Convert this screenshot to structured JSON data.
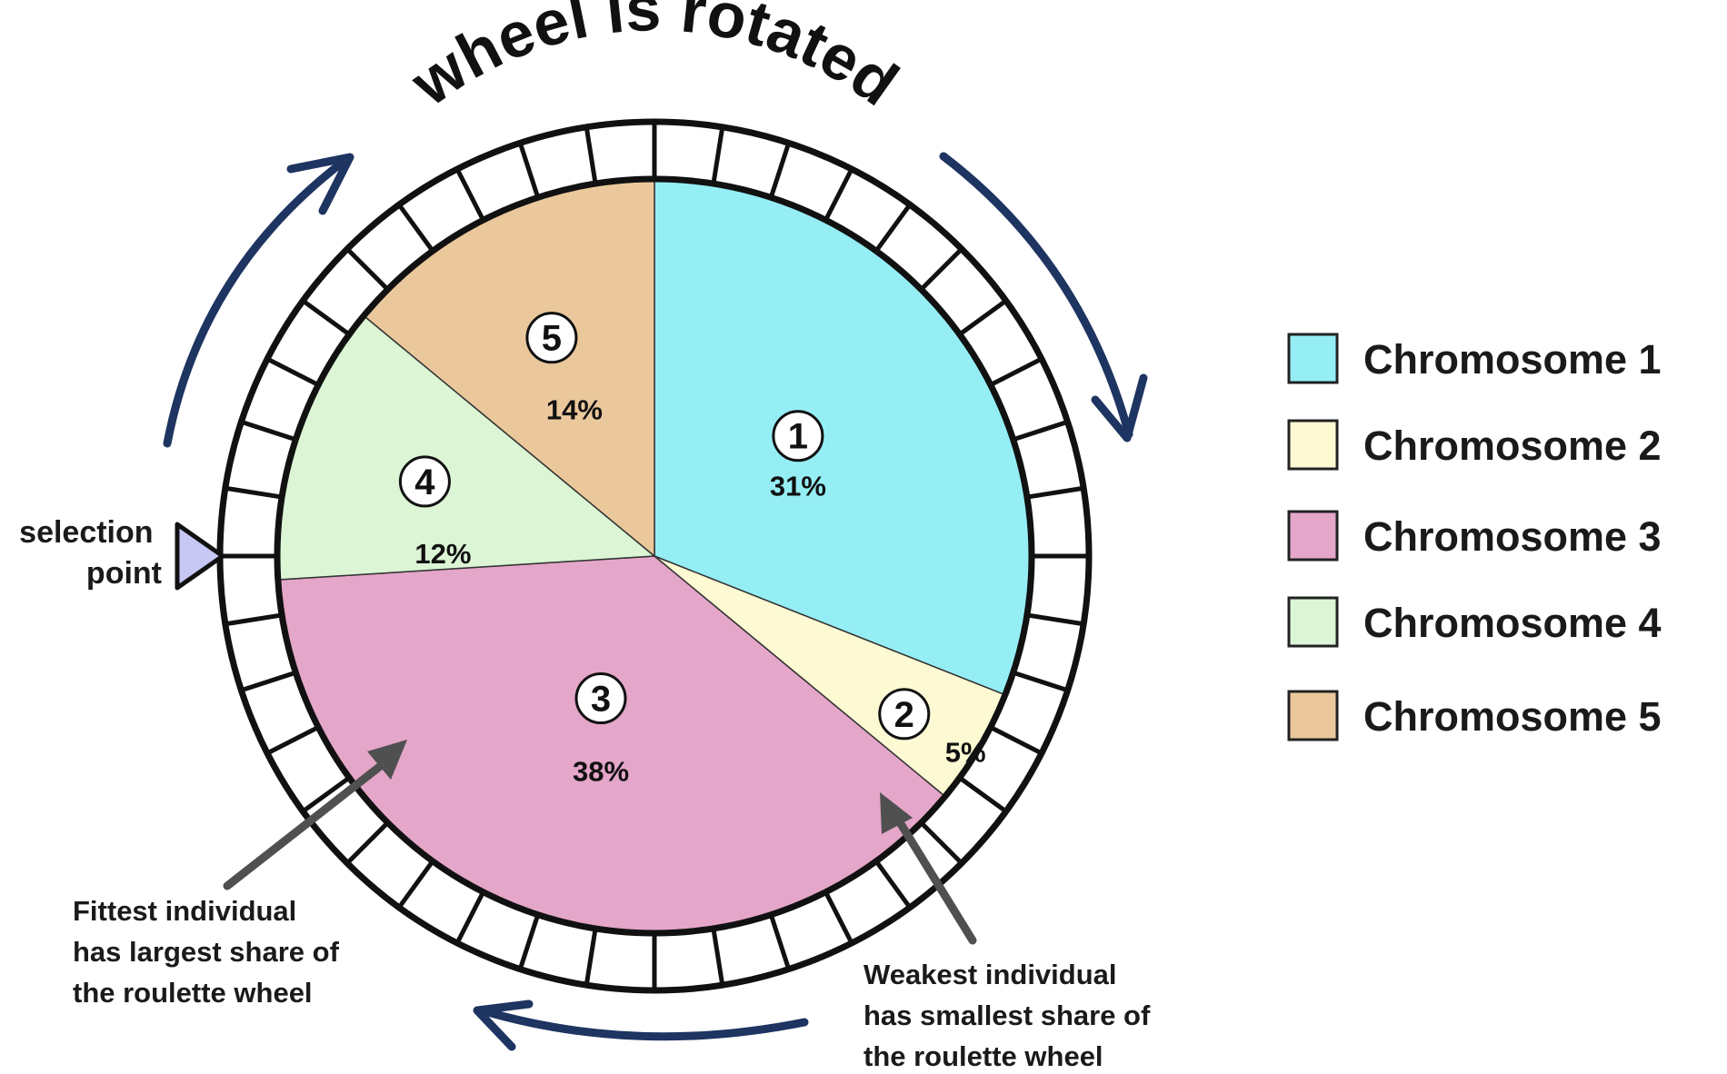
{
  "title": "wheel is rotated",
  "selection_label": [
    "selection",
    "point"
  ],
  "chart_data": {
    "type": "pie",
    "slices": [
      {
        "id": "1",
        "label": "Chromosome 1",
        "value": 31,
        "display": "31%",
        "color": "#96eef5"
      },
      {
        "id": "2",
        "label": "Chromosome 2",
        "value": 5,
        "display": "5%",
        "color": "#fdf9d3"
      },
      {
        "id": "3",
        "label": "Chromosome 3",
        "value": 38,
        "display": "38%",
        "color": "#e4a6c9"
      },
      {
        "id": "4",
        "label": "Chromosome 4",
        "value": 12,
        "display": "12%",
        "color": "#dbf5d5"
      },
      {
        "id": "5",
        "label": "Chromosome 5",
        "value": 14,
        "display": "14%",
        "color": "#ebc89c"
      }
    ],
    "order_clockwise_from_top": [
      "1",
      "2",
      "3",
      "4",
      "5"
    ],
    "outer_ring_segments": 40,
    "legend_placement": "right"
  },
  "annotations": {
    "fittest": [
      "Fittest individual",
      "has largest share of",
      "the roulette wheel"
    ],
    "weakest": [
      "Weakest individual",
      "has smallest share of",
      "the roulette wheel"
    ]
  },
  "colors": {
    "arrow": "#1e3461",
    "pointer_fill": "#c8c8f5",
    "annotation_arrow": "#505050",
    "outline": "#111111"
  }
}
